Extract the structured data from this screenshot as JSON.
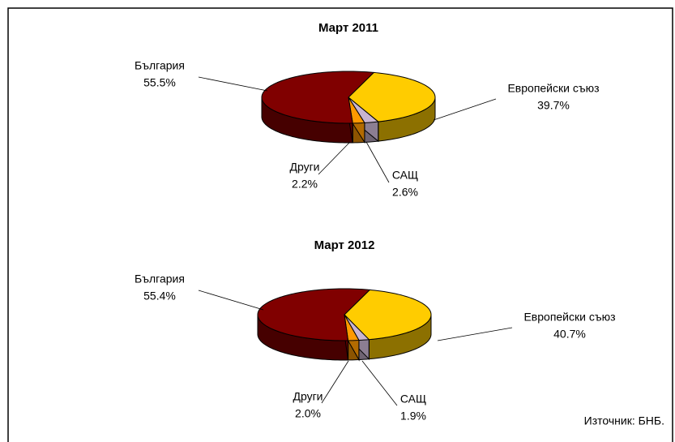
{
  "chart_data": [
    {
      "type": "pie3d",
      "title": "Март 2011",
      "categories": [
        "Европейски съюз",
        "САЩ",
        "Други",
        "България"
      ],
      "values": [
        39.7,
        2.6,
        2.2,
        55.5
      ],
      "value_labels": [
        "39.7%",
        "2.6%",
        "2.2%",
        "55.5%"
      ],
      "colors": [
        "#ffcc00",
        "#c8b4d0",
        "#ff9900",
        "#800000"
      ]
    },
    {
      "type": "pie3d",
      "title": "Март 2012",
      "categories": [
        "Европейски съюз",
        "САЩ",
        "Други",
        "България"
      ],
      "values": [
        40.7,
        1.9,
        2.0,
        55.4
      ],
      "value_labels": [
        "40.7%",
        "1.9%",
        "2.0%",
        "55.4%"
      ],
      "colors": [
        "#ffcc00",
        "#c8b4d0",
        "#ff9900",
        "#800000"
      ]
    }
  ],
  "source": "Източник: БНБ."
}
